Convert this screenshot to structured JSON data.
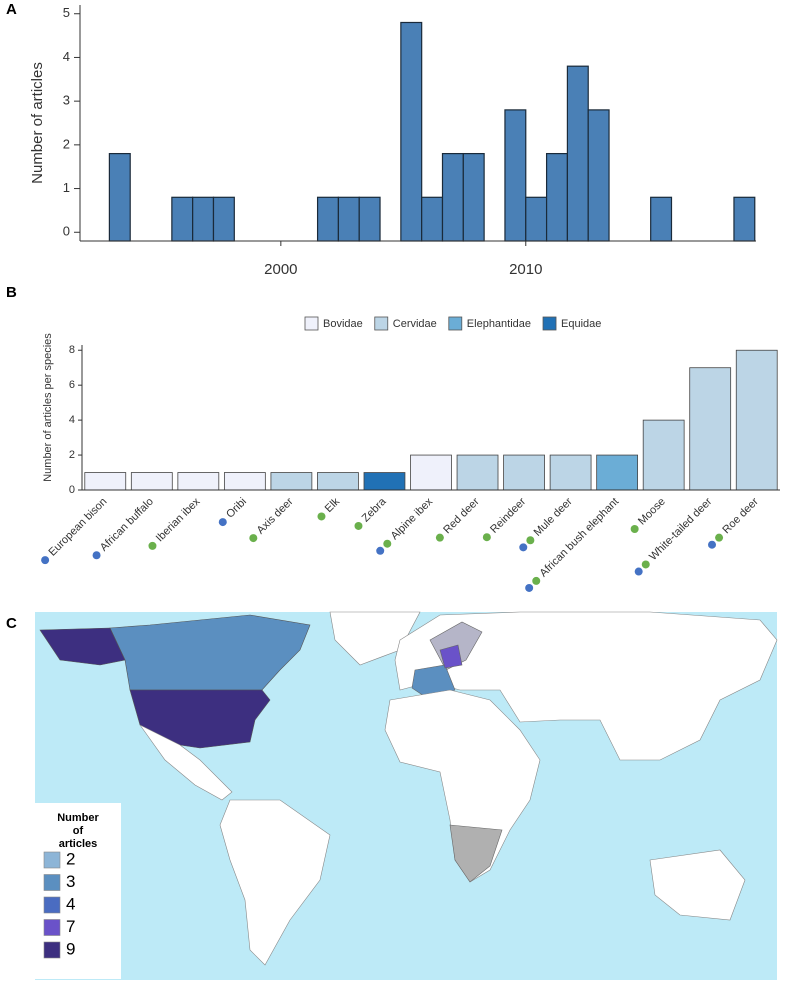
{
  "chart_data": [
    {
      "label": "A",
      "type": "histogram",
      "ylabel": "Number of articles",
      "bins": [
        1993,
        1993.85,
        1994.7,
        1995.55,
        1996.4,
        1997.25,
        1998.1,
        1998.95,
        1999.8,
        2000.65,
        2001.5,
        2002.35,
        2003.2,
        2004.05,
        2004.9,
        2005.75,
        2006.6,
        2007.45,
        2008.3,
        2009.15,
        2010,
        2010.85,
        2011.7,
        2012.55,
        2013.4,
        2014.25,
        2015.1,
        2015.95,
        2016.8,
        2017.65,
        2018.5,
        2019.35
      ],
      "counts": [
        1.8,
        null,
        null,
        0.8,
        0.8,
        0.8,
        null,
        null,
        null,
        null,
        0.8,
        0.8,
        0.8,
        null,
        4.8,
        0.8,
        1.8,
        1.8,
        null,
        2.8,
        0.8,
        1.8,
        3.8,
        2.8,
        null,
        null,
        0.8,
        null,
        null,
        null,
        0.8
      ],
      "color": "#4a80b6",
      "xlim": [
        1991.8,
        2019.4
      ],
      "ylim": [
        -0.2,
        5.2
      ],
      "xticks": [
        2000,
        2010
      ],
      "yticks": [
        0,
        1,
        2,
        3,
        4,
        5
      ]
    },
    {
      "label": "B",
      "type": "bar",
      "ylabel": "Number of articles per species",
      "categories": [
        "European bison",
        "African buffalo",
        "Iberian ibex",
        "Oribi",
        "Axis deer",
        "Elk",
        "Zebra",
        "Alpine ibex",
        "Red deer",
        "Reindeer",
        "Mule deer",
        "African bush elephant",
        "Moose",
        "White-tailed deer",
        "Roe deer"
      ],
      "series": [
        {
          "name": "Bovidae",
          "color": "#eff1fb",
          "values": [
            1,
            1,
            1,
            1,
            null,
            null,
            null,
            2,
            null,
            null,
            null,
            null,
            null,
            null,
            null
          ]
        },
        {
          "name": "Cervidae",
          "color": "#bcd5e6",
          "values": [
            null,
            null,
            null,
            null,
            1,
            1,
            null,
            null,
            2,
            2,
            2,
            null,
            4,
            7,
            8
          ]
        },
        {
          "name": "Elephantidae",
          "color": "#6badd6",
          "values": [
            null,
            null,
            null,
            null,
            null,
            null,
            null,
            null,
            null,
            null,
            null,
            2,
            null,
            null,
            null
          ]
        },
        {
          "name": "Equidae",
          "color": "#2171b5",
          "values": [
            null,
            null,
            null,
            null,
            null,
            null,
            1,
            null,
            null,
            null,
            null,
            null,
            null,
            null,
            null
          ]
        }
      ],
      "dots": [
        [
          "#4472c4"
        ],
        [
          "#4472c4"
        ],
        [
          "#6ab04c"
        ],
        [
          "#4472c4"
        ],
        [
          "#6ab04c"
        ],
        [
          "#6ab04c"
        ],
        [
          "#6ab04c"
        ],
        [
          "#6ab04c",
          "#4472c4"
        ],
        [
          "#6ab04c"
        ],
        [
          "#6ab04c"
        ],
        [
          "#6ab04c",
          "#4472c4"
        ],
        [
          "#6ab04c",
          "#4472c4"
        ],
        [
          "#6ab04c"
        ],
        [
          "#6ab04c",
          "#4472c4"
        ],
        [
          "#6ab04c",
          "#4472c4"
        ]
      ],
      "ylim": [
        0,
        8.3
      ],
      "yticks": [
        0,
        2,
        4,
        6,
        8
      ]
    },
    {
      "label": "C",
      "type": "map",
      "legend": {
        "title": "Number of articles",
        "entries": [
          {
            "value": 2,
            "color": "#8db5d7"
          },
          {
            "value": 3,
            "color": "#5b8fc0"
          },
          {
            "value": 4,
            "color": "#4a6cc1"
          },
          {
            "value": 7,
            "color": "#6a52c9"
          },
          {
            "value": 9,
            "color": "#3d2f80"
          }
        ]
      }
    }
  ]
}
